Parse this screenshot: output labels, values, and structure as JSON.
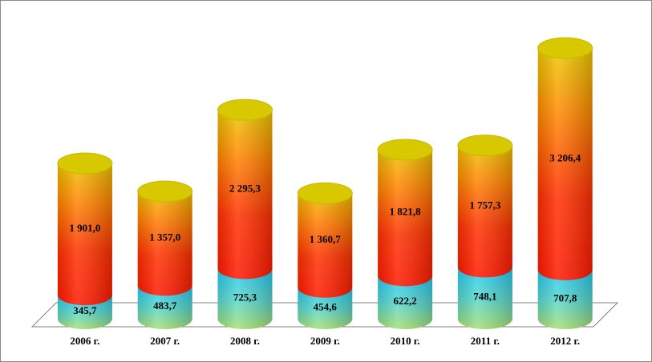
{
  "chart_data": {
    "type": "stacked-cylinder",
    "categories": [
      "2006 г.",
      "2007 г.",
      "2008 г.",
      "2009 г.",
      "2010 г.",
      "2011 г.",
      "2012 г."
    ],
    "series": [
      {
        "color": "#33c8f0",
        "values": [
          345.7,
          483.7,
          725.3,
          454.6,
          622.2,
          748.1,
          707.8
        ],
        "value_labels": [
          "345,7",
          "483,7",
          "725,3",
          "454,6",
          "622,2",
          "748,1",
          "707,8"
        ]
      },
      {
        "color": "#ff2a00",
        "values": [
          1901.0,
          1357.0,
          2295.3,
          1360.7,
          1821.8,
          1757.3,
          3206.4
        ],
        "value_labels": [
          "1 901,0",
          "1 357,0",
          "2 295,3",
          "1 360,7",
          "1 821,8",
          "1 757,3",
          "3 206,4"
        ]
      }
    ]
  }
}
